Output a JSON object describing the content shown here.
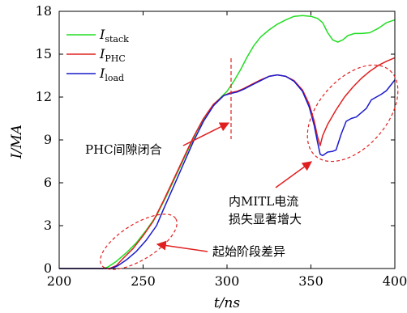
{
  "chart_data": {
    "type": "line",
    "xlabel": "t/ns",
    "ylabel": "I/MA",
    "xlim": [
      200,
      400
    ],
    "ylim": [
      0,
      18
    ],
    "xticks": [
      200,
      250,
      300,
      350,
      400
    ],
    "yticks": [
      0,
      3,
      6,
      9,
      12,
      15,
      18
    ],
    "legend_position": "top-left",
    "grid": false,
    "series": [
      {
        "name": "I_stack",
        "legend_main": "I",
        "legend_sub": "stack",
        "color": "#22dd22",
        "points": [
          [
            200,
            0
          ],
          [
            226,
            0
          ],
          [
            229,
            0.1
          ],
          [
            234,
            0.5
          ],
          [
            240,
            1.1
          ],
          [
            246,
            1.8
          ],
          [
            252,
            2.7
          ],
          [
            258,
            3.7
          ],
          [
            264,
            5.1
          ],
          [
            270,
            6.6
          ],
          [
            276,
            8.1
          ],
          [
            282,
            9.6
          ],
          [
            288,
            10.8
          ],
          [
            294,
            11.7
          ],
          [
            300,
            12.4
          ],
          [
            304,
            13.1
          ],
          [
            308,
            13.9
          ],
          [
            312,
            14.8
          ],
          [
            316,
            15.6
          ],
          [
            320,
            16.2
          ],
          [
            325,
            16.7
          ],
          [
            330,
            17.1
          ],
          [
            335,
            17.4
          ],
          [
            340,
            17.65
          ],
          [
            345,
            17.7
          ],
          [
            350,
            17.65
          ],
          [
            354,
            17.5
          ],
          [
            357,
            17.2
          ],
          [
            360,
            16.5
          ],
          [
            363,
            16
          ],
          [
            366,
            15.85
          ],
          [
            369,
            16
          ],
          [
            372,
            16.3
          ],
          [
            376,
            16.45
          ],
          [
            380,
            16.45
          ],
          [
            385,
            16.5
          ],
          [
            390,
            16.8
          ],
          [
            395,
            17.2
          ],
          [
            400,
            17.4
          ]
        ]
      },
      {
        "name": "I_PHC",
        "legend_main": "I",
        "legend_sub": "PHC",
        "color": "#e02020",
        "points": [
          [
            200,
            0
          ],
          [
            230,
            0
          ],
          [
            234,
            0.2
          ],
          [
            238,
            0.7
          ],
          [
            244,
            1.4
          ],
          [
            250,
            2.3
          ],
          [
            256,
            3.3
          ],
          [
            262,
            4.7
          ],
          [
            268,
            6.2
          ],
          [
            274,
            7.7
          ],
          [
            280,
            9.2
          ],
          [
            286,
            10.5
          ],
          [
            292,
            11.5
          ],
          [
            298,
            12.1
          ],
          [
            302,
            12.3
          ],
          [
            306,
            12.4
          ],
          [
            310,
            12.6
          ],
          [
            315,
            12.9
          ],
          [
            320,
            13.2
          ],
          [
            325,
            13.45
          ],
          [
            330,
            13.55
          ],
          [
            335,
            13.45
          ],
          [
            340,
            13.15
          ],
          [
            345,
            12.5
          ],
          [
            349,
            11.5
          ],
          [
            352,
            10.3
          ],
          [
            354,
            9.2
          ],
          [
            355.5,
            8.6
          ],
          [
            357,
            9.3
          ],
          [
            360,
            10.1
          ],
          [
            365,
            11.1
          ],
          [
            370,
            12
          ],
          [
            375,
            12.7
          ],
          [
            380,
            13.3
          ],
          [
            385,
            13.8
          ],
          [
            390,
            14.2
          ],
          [
            395,
            14.5
          ],
          [
            400,
            14.75
          ]
        ]
      },
      {
        "name": "I_load",
        "legend_main": "I",
        "legend_sub": "load",
        "color": "#1a1acc",
        "points": [
          [
            200,
            0
          ],
          [
            231,
            0
          ],
          [
            235,
            0.2
          ],
          [
            240,
            0.6
          ],
          [
            246,
            1.2
          ],
          [
            252,
            2
          ],
          [
            258,
            3
          ],
          [
            262,
            4.1
          ],
          [
            268,
            5.7
          ],
          [
            274,
            7.3
          ],
          [
            280,
            8.9
          ],
          [
            286,
            10.3
          ],
          [
            292,
            11.4
          ],
          [
            298,
            12.1
          ],
          [
            302,
            12.25
          ],
          [
            306,
            12.35
          ],
          [
            310,
            12.55
          ],
          [
            315,
            12.85
          ],
          [
            320,
            13.15
          ],
          [
            325,
            13.45
          ],
          [
            330,
            13.55
          ],
          [
            335,
            13.45
          ],
          [
            340,
            13.1
          ],
          [
            345,
            12.4
          ],
          [
            349,
            11.3
          ],
          [
            352,
            10
          ],
          [
            354,
            8.8
          ],
          [
            355.5,
            8
          ],
          [
            357,
            7.9
          ],
          [
            360,
            8.15
          ],
          [
            363,
            8.2
          ],
          [
            365,
            8.3
          ],
          [
            368,
            9.4
          ],
          [
            371,
            10.3
          ],
          [
            374,
            10.5
          ],
          [
            377,
            10.6
          ],
          [
            380,
            10.9
          ],
          [
            383,
            11.2
          ],
          [
            386,
            11.8
          ],
          [
            389,
            12
          ],
          [
            392,
            12.2
          ],
          [
            395,
            12.45
          ],
          [
            398,
            12.9
          ],
          [
            400,
            13.2
          ]
        ]
      }
    ],
    "annotations": [
      {
        "text": "PHC间隙闭合"
      },
      {
        "text_line1": "内MITL电流",
        "text_line2": "损失显著增大"
      },
      {
        "text": "起始阶段差异"
      }
    ]
  },
  "colors": {
    "axis": "#000000",
    "annotation": "#e02020"
  }
}
